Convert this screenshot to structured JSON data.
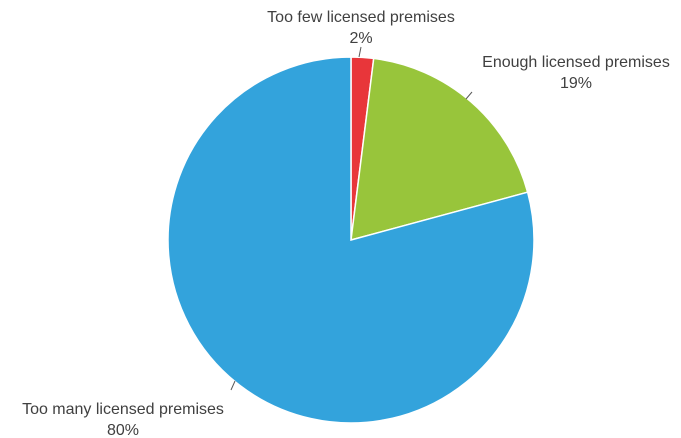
{
  "chart_data": {
    "type": "pie",
    "slices": [
      {
        "label": "Too few licensed premises",
        "value": 2,
        "display": "2%",
        "color": "#e8363a"
      },
      {
        "label": "Enough licensed premises",
        "value": 19,
        "display": "19%",
        "color": "#98c53b"
      },
      {
        "label": "Too many licensed premises",
        "value": 80,
        "display": "80%",
        "color": "#33a3dc"
      }
    ],
    "start_angle_deg": 0,
    "direction": "clockwise",
    "legend": "none",
    "data_labels": "outside with leader lines"
  }
}
